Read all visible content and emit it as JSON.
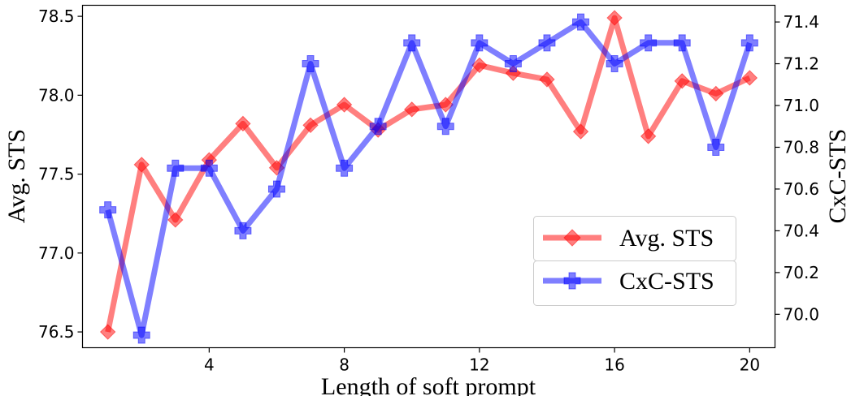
{
  "chart_data": {
    "type": "line",
    "title": "",
    "xlabel": "Length of soft prompt",
    "ylabel": "Avg. STS",
    "y2label": "CxC-STS",
    "x": [
      1,
      2,
      3,
      4,
      5,
      6,
      7,
      8,
      9,
      10,
      11,
      12,
      13,
      14,
      15,
      16,
      17,
      18,
      19,
      20
    ],
    "xlim": [
      0.25,
      20.75
    ],
    "ylim": [
      76.4,
      78.57
    ],
    "y2lim": [
      69.84,
      71.48
    ],
    "xticks": [
      "4",
      "8",
      "12",
      "16",
      "20"
    ],
    "xtick_values": [
      4,
      8,
      12,
      16,
      20
    ],
    "yticks": [
      "76.5",
      "77.0",
      "77.5",
      "78.0",
      "78.5"
    ],
    "ytick_values": [
      76.5,
      77.0,
      77.5,
      78.0,
      78.5
    ],
    "y2ticks": [
      "70.0",
      "70.2",
      "70.4",
      "70.6",
      "70.8",
      "71.0",
      "71.2",
      "71.4"
    ],
    "y2tick_values": [
      70.0,
      70.2,
      70.4,
      70.6,
      70.8,
      71.0,
      71.2,
      71.4
    ],
    "legend_position": "lower-right",
    "series": [
      {
        "name": "Avg. STS",
        "axis": "left",
        "color": "#ff0000",
        "marker": "diamond",
        "values": [
          76.5,
          77.56,
          77.21,
          77.59,
          77.82,
          77.54,
          77.81,
          77.94,
          77.78,
          77.91,
          77.94,
          78.19,
          78.14,
          78.1,
          77.77,
          78.49,
          77.74,
          78.09,
          78.01,
          78.11
        ]
      },
      {
        "name": "CxC-STS",
        "axis": "right",
        "color": "#0000ff",
        "marker": "plus",
        "values": [
          70.5,
          69.9,
          70.7,
          70.7,
          70.4,
          70.6,
          71.2,
          70.7,
          70.9,
          71.3,
          70.9,
          71.3,
          71.2,
          71.3,
          71.4,
          71.2,
          71.3,
          71.3,
          70.8,
          71.3
        ]
      }
    ]
  }
}
